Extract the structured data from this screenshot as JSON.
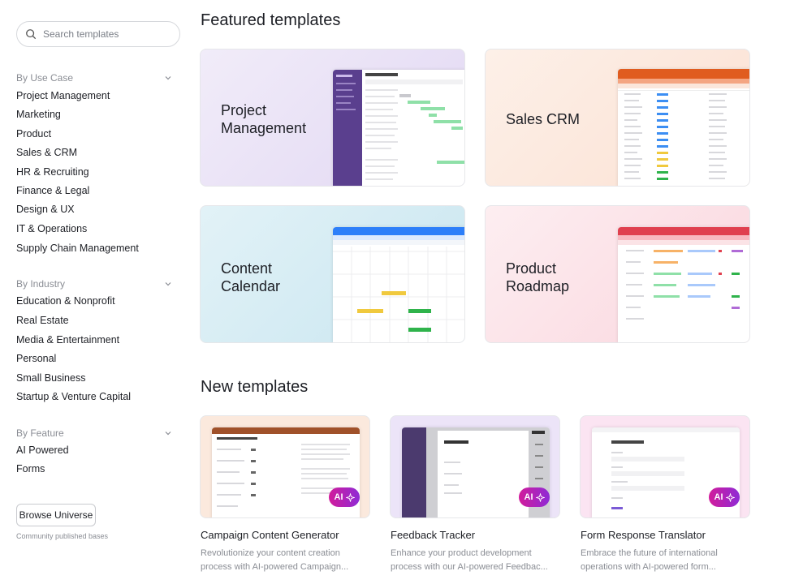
{
  "search": {
    "placeholder": "Search templates"
  },
  "sidebar": {
    "use_case": {
      "heading": "By Use Case",
      "items": [
        "Project Management",
        "Marketing",
        "Product",
        "Sales & CRM",
        "HR & Recruiting",
        "Finance & Legal",
        "Design & UX",
        "IT & Operations",
        "Supply Chain Management"
      ]
    },
    "industry": {
      "heading": "By Industry",
      "items": [
        "Education & Nonprofit",
        "Real Estate",
        "Media & Entertainment",
        "Personal",
        "Small Business",
        "Startup & Venture Capital"
      ]
    },
    "feature": {
      "heading": "By Feature",
      "items": [
        "AI Powered",
        "Forms"
      ]
    },
    "universe_button": "Browse Universe",
    "community_note": "Community published bases"
  },
  "featured": {
    "heading": "Featured templates",
    "cards": [
      {
        "title": "Project\nManagement",
        "bg": "#ede6f7",
        "accent": "#5a3f8e"
      },
      {
        "title": "Sales CRM",
        "bg": "#fcebe2",
        "accent": "#e05c1f"
      },
      {
        "title": "Content\nCalendar",
        "bg": "#d8eef5",
        "accent": "#2d7ff9"
      },
      {
        "title": "Product\nRoadmap",
        "bg": "#fbe3e8",
        "accent": "#e0404f"
      }
    ]
  },
  "new_templates": {
    "heading": "New templates",
    "cards": [
      {
        "title": "Campaign Content Generator",
        "desc_line1": "Revolutionize your content creation",
        "desc_line2": "process with AI-powered Campaign...",
        "badge": "AI",
        "bg": "#fbe9dd"
      },
      {
        "title": "Feedback Tracker",
        "desc_line1": "Enhance your product development",
        "desc_line2": "process with our AI-powered Feedbac...",
        "badge": "AI",
        "bg": "#ece4f8"
      },
      {
        "title": "Form Response Translator",
        "desc_line1": "Embrace the future of international",
        "desc_line2": "operations with AI-powered form...",
        "badge": "AI",
        "bg": "#fbe4f2"
      }
    ]
  }
}
